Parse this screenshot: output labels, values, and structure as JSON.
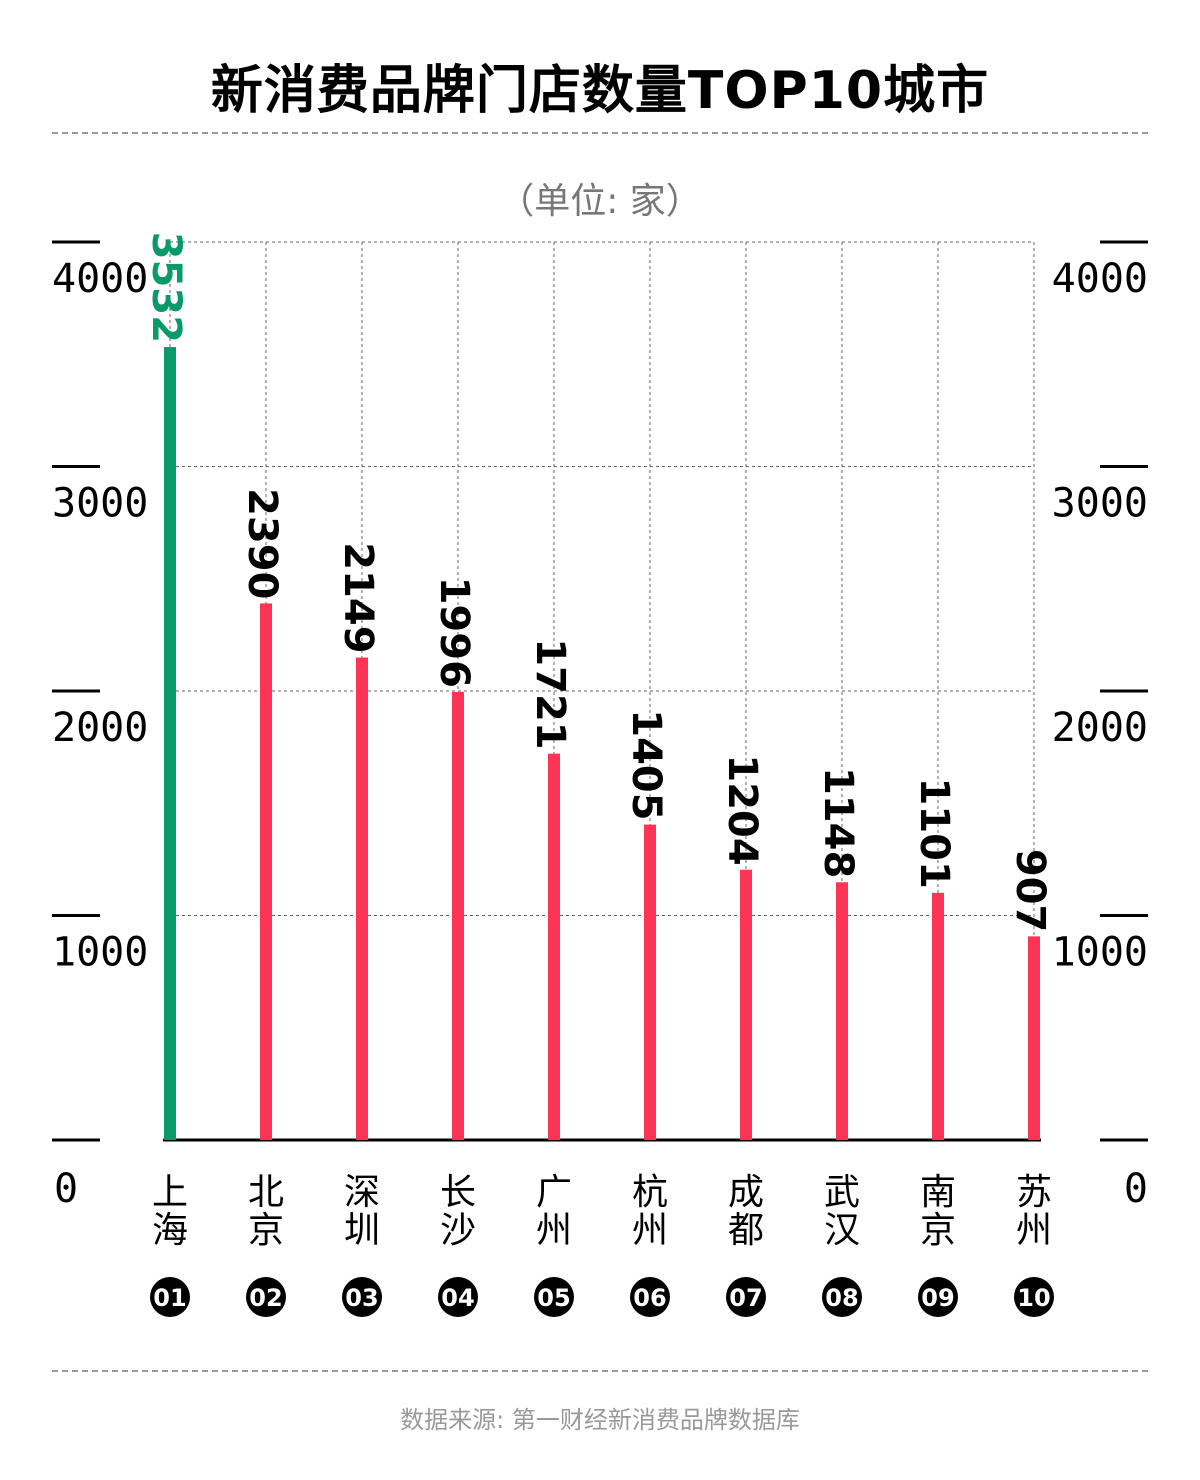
{
  "title": "新消费品牌门店数量TOP10城市",
  "unit_label": "（单位: 家）",
  "source": "数据来源: 第一财经新消费品牌数据库",
  "colors": {
    "highlight": "#0a9a6a",
    "bar": "#ff3355",
    "grid": "#666666",
    "axis": "#000000"
  },
  "chart_data": {
    "type": "bar",
    "orientation": "vertical",
    "categories": [
      "上海",
      "北京",
      "深圳",
      "长沙",
      "广州",
      "杭州",
      "成都",
      "武汉",
      "南京",
      "苏州"
    ],
    "ranks": [
      "01",
      "02",
      "03",
      "04",
      "05",
      "06",
      "07",
      "08",
      "09",
      "10"
    ],
    "values": [
      3532,
      2390,
      2149,
      1996,
      1721,
      1405,
      1204,
      1148,
      1101,
      907
    ],
    "highlight_index": 0,
    "ylim": [
      0,
      4000
    ],
    "yticks": [
      0,
      1000,
      2000,
      3000,
      4000
    ],
    "ytick_labels": [
      "0",
      "1000",
      "2000",
      "3000",
      "4000"
    ],
    "axis_labels_both_sides": true,
    "grid": true,
    "value_labels": "rotated-vertical"
  }
}
